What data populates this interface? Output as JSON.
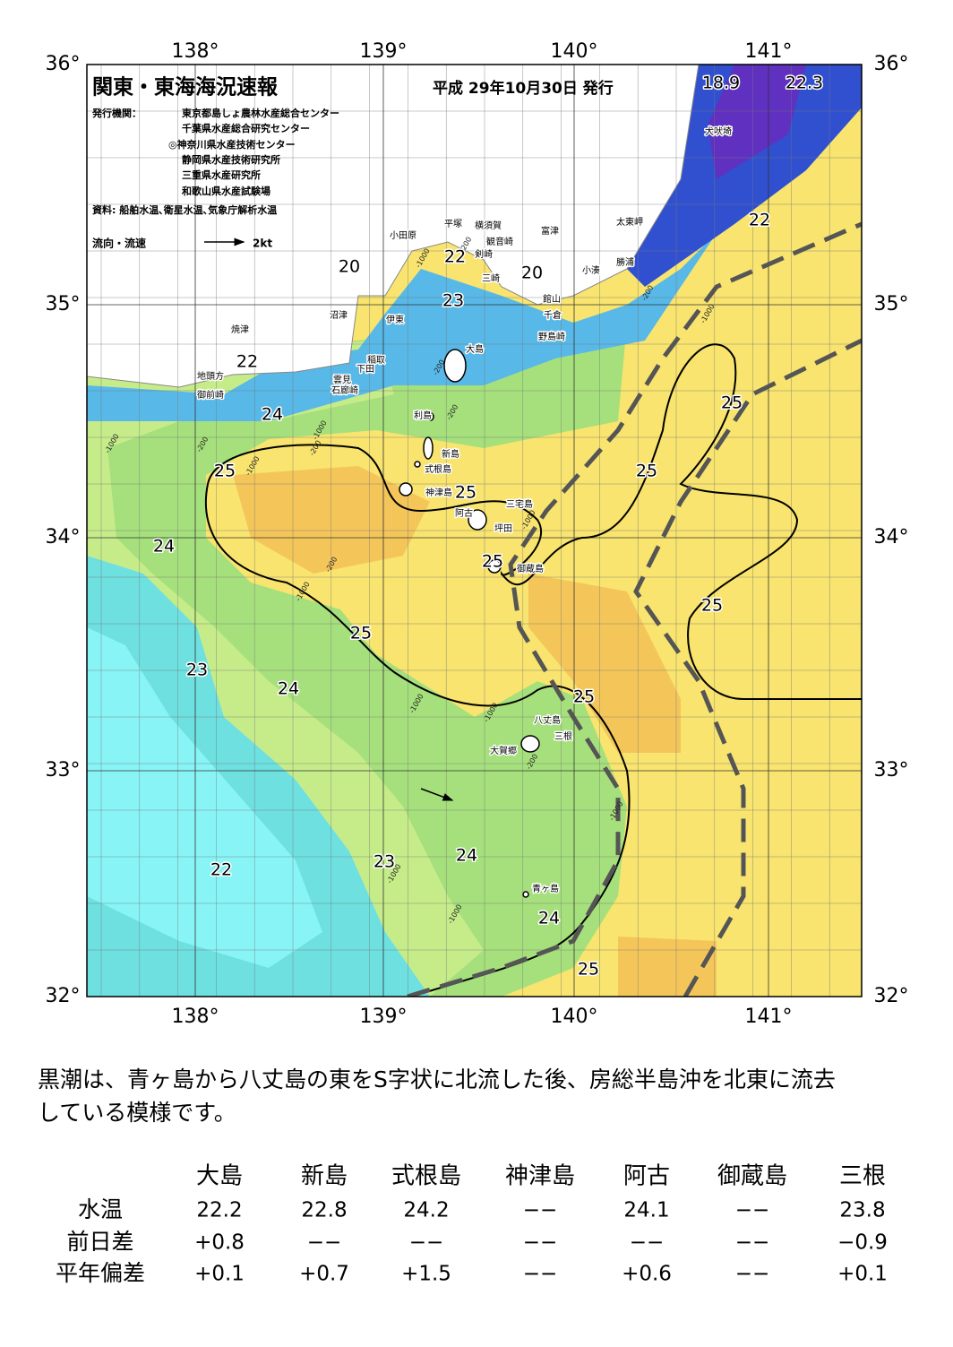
{
  "header": {
    "title": "関東・東海海況速報",
    "date": "平成 29年10月30日 発行",
    "publisher_label": "発行機関：",
    "publishers": [
      "東京都島しょ農林水産総合センター",
      "千葉県水産総合研究センター",
      "◎神奈川県水産技術センター",
      "静岡県水産技術研究所",
      "三重県水産研究所",
      "和歌山県水産試験場"
    ],
    "source": "資料: 船舶水温､衛星水温､気象庁解析水温",
    "current_legend": "流向・流速",
    "current_scale": "2kt"
  },
  "axes": {
    "top": [
      "138°",
      "139°",
      "140°",
      "141°"
    ],
    "bottom": [
      "138°",
      "139°",
      "140°",
      "141°"
    ],
    "left": [
      "36°",
      "35°",
      "34°",
      "33°",
      "32°"
    ],
    "right": [
      "36°",
      "35°",
      "34°",
      "33°",
      "32°"
    ]
  },
  "map": {
    "temperature_labels": [
      "18.9",
      "22.3",
      "20",
      "22",
      "20",
      "23",
      "22",
      "22",
      "24",
      "25",
      "25",
      "25",
      "25",
      "24",
      "25",
      "25",
      "25",
      "23",
      "24",
      "25",
      "24",
      "23",
      "22",
      "24",
      "25"
    ],
    "place_names": [
      "犬吠埼",
      "太東岬",
      "勝浦",
      "小湊",
      "富津",
      "横須賀",
      "観音崎",
      "平塚",
      "小田原",
      "剣崎",
      "三崎",
      "館山",
      "千倉",
      "野島崎",
      "大島",
      "沼津",
      "伊東",
      "焼津",
      "稲取",
      "下田",
      "雲見",
      "石廊崎",
      "地頭方",
      "御前崎",
      "利島",
      "新島",
      "式根島",
      "神津島",
      "三宅島",
      "阿古",
      "坪田",
      "御蔵島",
      "八丈島",
      "三根",
      "大賀郷",
      "青ヶ島"
    ],
    "depth_labels": [
      "-200",
      "-1000",
      "-200",
      "-200",
      "-1000",
      "-200",
      "-1000",
      "-200",
      "-1000",
      "-200",
      "-1000",
      "-1000",
      "-1000",
      "-1000",
      "-200",
      "-1000",
      "-1000",
      "-1000",
      "-1000",
      "-200"
    ]
  },
  "description": [
    "黒潮は、青ヶ島から八丈島の東をS字状に北流した後、房総半島沖を北東に流去",
    "している模様です。"
  ],
  "table": {
    "columns": [
      "大島",
      "新島",
      "式根島",
      "神津島",
      "阿古",
      "御蔵島",
      "三根"
    ],
    "rows": [
      {
        "label": "水温",
        "values": [
          "22.2",
          "22.8",
          "24.2",
          "−−",
          "24.1",
          "−−",
          "23.8"
        ]
      },
      {
        "label": "前日差",
        "values": [
          "+0.8",
          "−−",
          "−−",
          "−−",
          "−−",
          "−−",
          "−0.9"
        ]
      },
      {
        "label": "平年偏差",
        "values": [
          "+0.1",
          "+0.7",
          "+1.5",
          "−−",
          "+0.6",
          "−−",
          "+0.1"
        ]
      }
    ]
  }
}
